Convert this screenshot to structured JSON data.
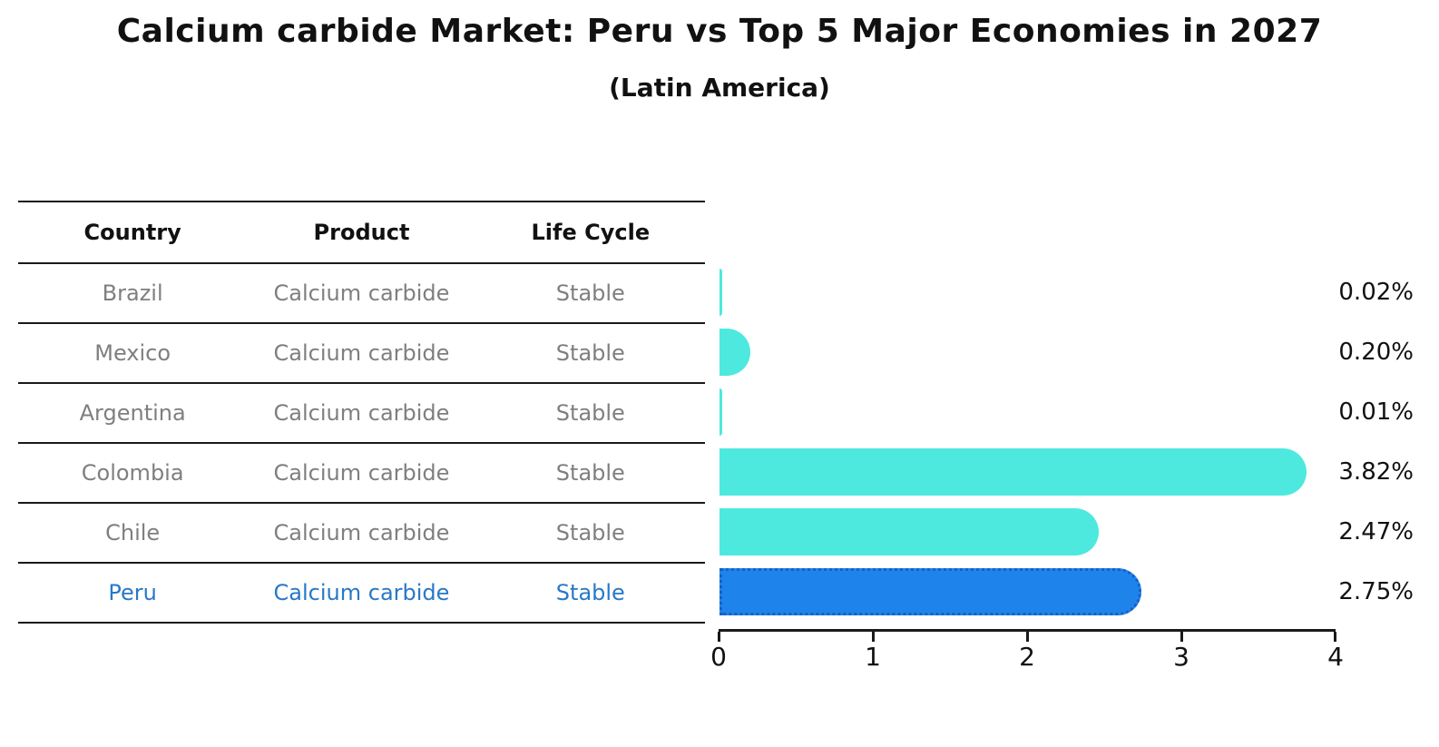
{
  "title": "Calcium carbide Market: Peru vs Top 5 Major Economies in 2027",
  "subtitle": "(Latin America)",
  "table": {
    "headers": [
      "Country",
      "Product",
      "Life Cycle"
    ],
    "rows": [
      {
        "country": "Brazil",
        "product": "Calcium carbide",
        "life_cycle": "Stable",
        "highlight": false
      },
      {
        "country": "Mexico",
        "product": "Calcium carbide",
        "life_cycle": "Stable",
        "highlight": false
      },
      {
        "country": "Argentina",
        "product": "Calcium carbide",
        "life_cycle": "Stable",
        "highlight": false
      },
      {
        "country": "Colombia",
        "product": "Calcium carbide",
        "life_cycle": "Stable",
        "highlight": false
      },
      {
        "country": "Chile",
        "product": "Calcium carbide",
        "life_cycle": "Stable",
        "highlight": false
      },
      {
        "country": "Peru",
        "product": "Calcium carbide",
        "life_cycle": "Stable",
        "highlight": true
      }
    ]
  },
  "chart_data": {
    "type": "bar",
    "orientation": "horizontal",
    "title": "Calcium carbide Market: Peru vs Top 5 Major Economies in 2027",
    "subtitle": "(Latin America)",
    "categories": [
      "Brazil",
      "Mexico",
      "Argentina",
      "Colombia",
      "Chile",
      "Peru"
    ],
    "values": [
      0.02,
      0.2,
      0.01,
      3.82,
      2.47,
      2.75
    ],
    "value_labels": [
      "0.02%",
      "0.20%",
      "0.01%",
      "3.82%",
      "2.47%",
      "2.75%"
    ],
    "unit": "percent",
    "xlabel": "",
    "ylabel": "",
    "xlim": [
      0,
      4
    ],
    "xticks": [
      0,
      1,
      2,
      3,
      4
    ],
    "xtick_labels": [
      "0",
      "1",
      "2",
      "3",
      "4"
    ],
    "grid": false,
    "legend": false,
    "highlight_index": 5,
    "bar_color": "#4DE9DF",
    "highlight_bar_color": "#1E84EC",
    "highlight_bar_edge_color": "#1760C4",
    "highlight_text_color": "#2878C8",
    "text_color": "#7f7f7f"
  }
}
